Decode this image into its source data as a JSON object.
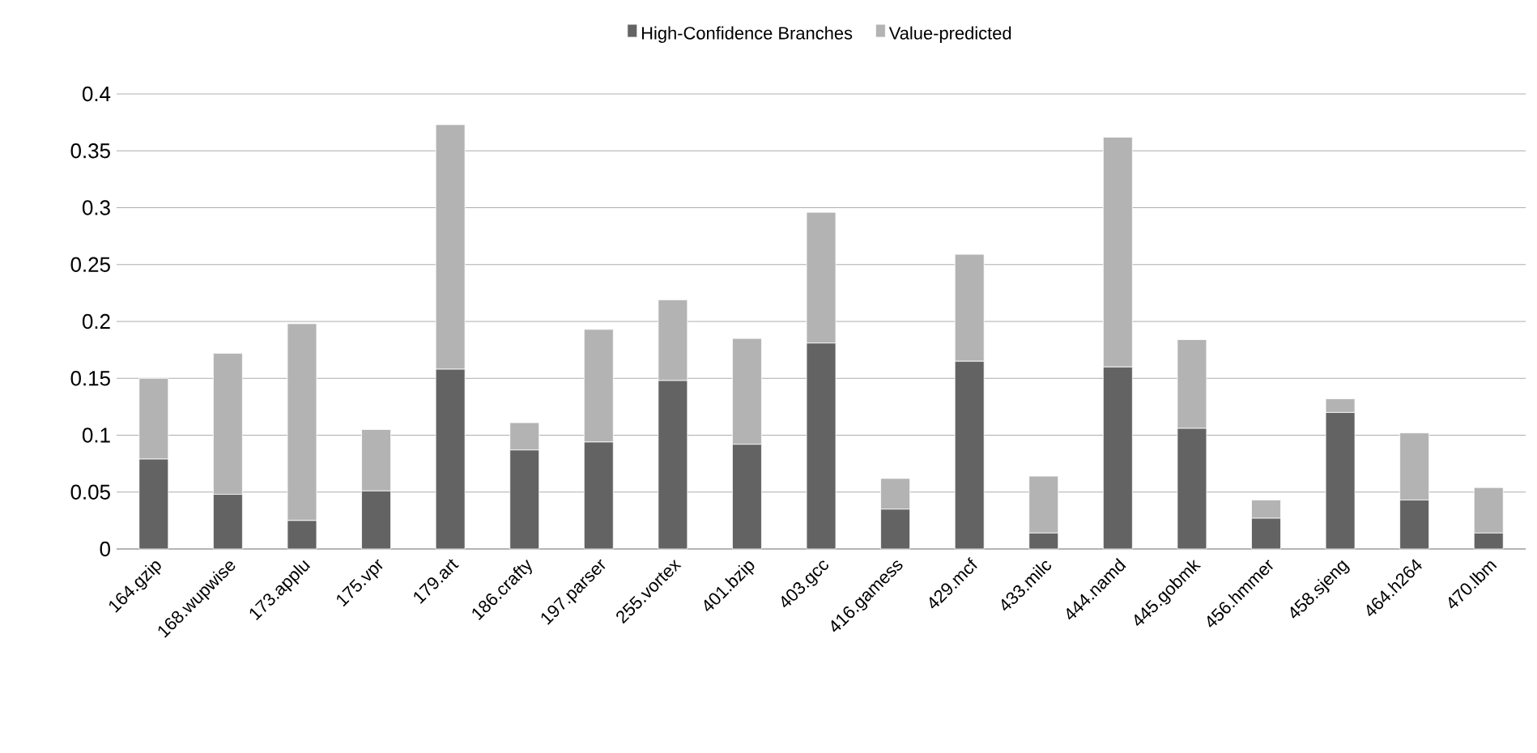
{
  "chart_data": {
    "type": "bar",
    "stacked": true,
    "categories": [
      "164.gzip",
      "168.wupwise",
      "173.applu",
      "175.vpr",
      "179.art",
      "186.crafty",
      "197.parser",
      "255.vortex",
      "401.bzip",
      "403.gcc",
      "416.gamess",
      "429.mcf",
      "433.milc",
      "444.namd",
      "445.gobmk",
      "456.hmmer",
      "458.sjeng",
      "464.h264",
      "470.lbm"
    ],
    "series": [
      {
        "name": "High-Confidence Branches",
        "color": "#636363",
        "values": [
          0.079,
          0.048,
          0.025,
          0.051,
          0.158,
          0.087,
          0.094,
          0.148,
          0.092,
          0.181,
          0.035,
          0.165,
          0.014,
          0.16,
          0.106,
          0.027,
          0.12,
          0.043,
          0.014
        ]
      },
      {
        "name": "Value-predicted",
        "color": "#b3b3b3",
        "values": [
          0.071,
          0.124,
          0.173,
          0.054,
          0.215,
          0.024,
          0.099,
          0.071,
          0.093,
          0.115,
          0.027,
          0.094,
          0.05,
          0.202,
          0.078,
          0.016,
          0.012,
          0.059,
          0.04
        ]
      }
    ],
    "ylim": [
      0,
      0.4
    ],
    "yticks": [
      0,
      0.05,
      0.1,
      0.15,
      0.2,
      0.25,
      0.3,
      0.35,
      0.4
    ],
    "grid": "y",
    "legend": "top"
  }
}
